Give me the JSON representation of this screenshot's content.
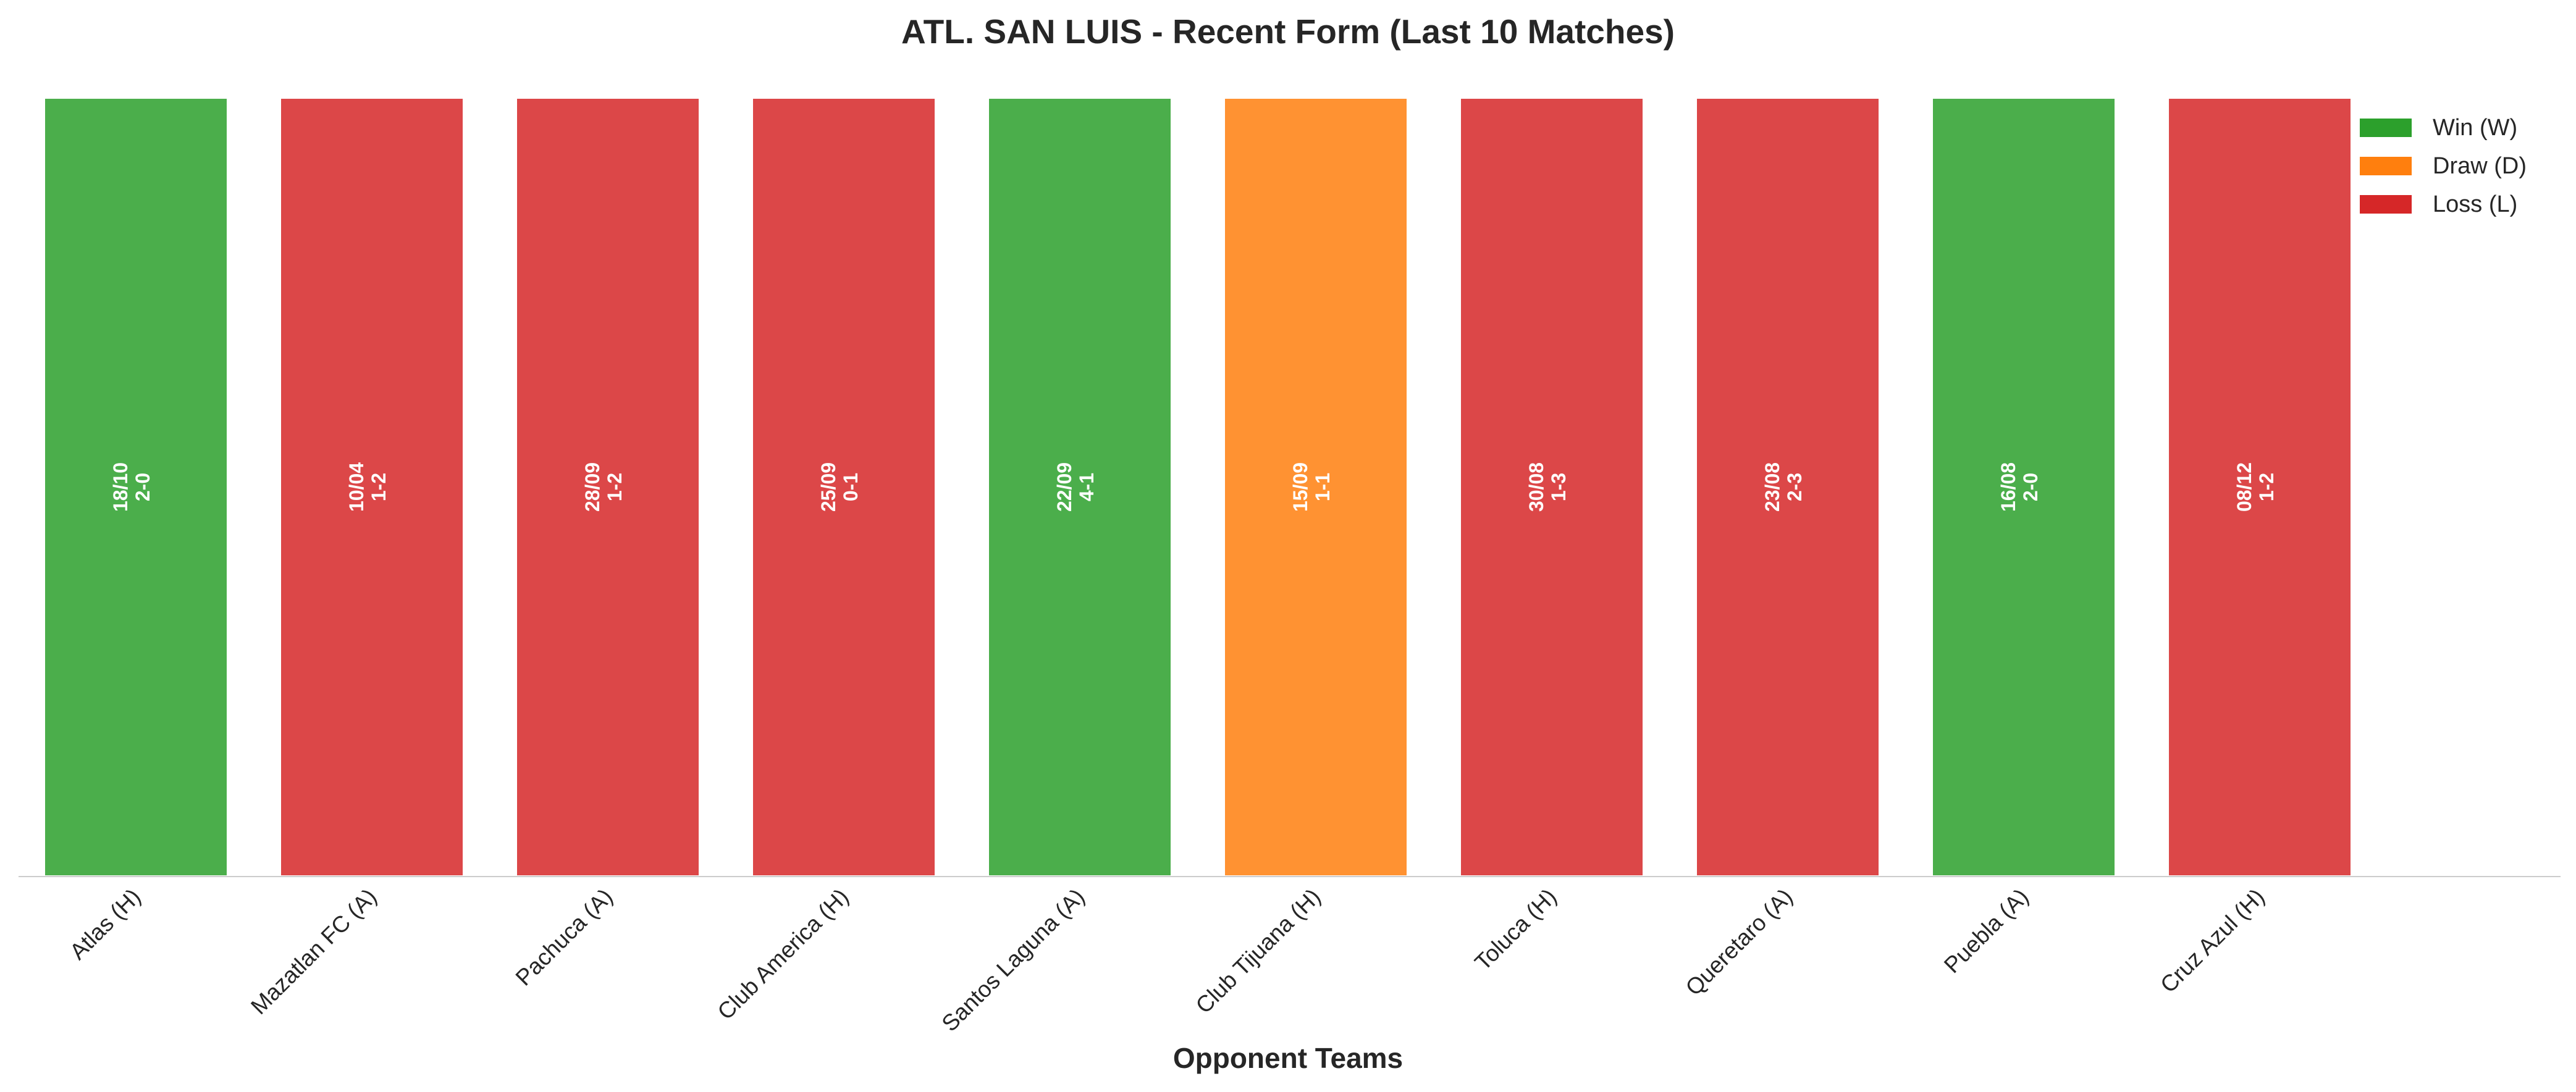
{
  "chart_data": {
    "type": "bar",
    "title": "ATL. SAN LUIS - Recent Form (Last 10 Matches)",
    "xlabel": "Opponent Teams",
    "ylabel": "",
    "ylim": [
      0,
      1
    ],
    "grid": false,
    "legend_position": "top-right",
    "categories": [
      "Atlas (H)",
      "Mazatlan FC (A)",
      "Pachuca (A)",
      "Club America (H)",
      "Santos Laguna (A)",
      "Club Tijuana (H)",
      "Toluca (H)",
      "Queretaro (A)",
      "Puebla (A)",
      "Cruz Azul (H)"
    ],
    "values": [
      1,
      1,
      1,
      1,
      1,
      1,
      1,
      1,
      1,
      1
    ],
    "results": [
      "W",
      "L",
      "L",
      "L",
      "W",
      "D",
      "L",
      "L",
      "W",
      "L"
    ],
    "dates": [
      "18/10",
      "10/04",
      "28/09",
      "25/09",
      "22/09",
      "15/09",
      "30/08",
      "23/08",
      "16/08",
      "08/12"
    ],
    "scores": [
      "2-0",
      "1-2",
      "1-2",
      "0-1",
      "4-1",
      "1-1",
      "1-3",
      "2-3",
      "2-0",
      "1-2"
    ],
    "legend": [
      {
        "key": "W",
        "label": "Win (W)",
        "color": "#2ca02c"
      },
      {
        "key": "D",
        "label": "Draw (D)",
        "color": "#ff7f0e"
      },
      {
        "key": "L",
        "label": "Loss (L)",
        "color": "#d62728"
      }
    ]
  }
}
